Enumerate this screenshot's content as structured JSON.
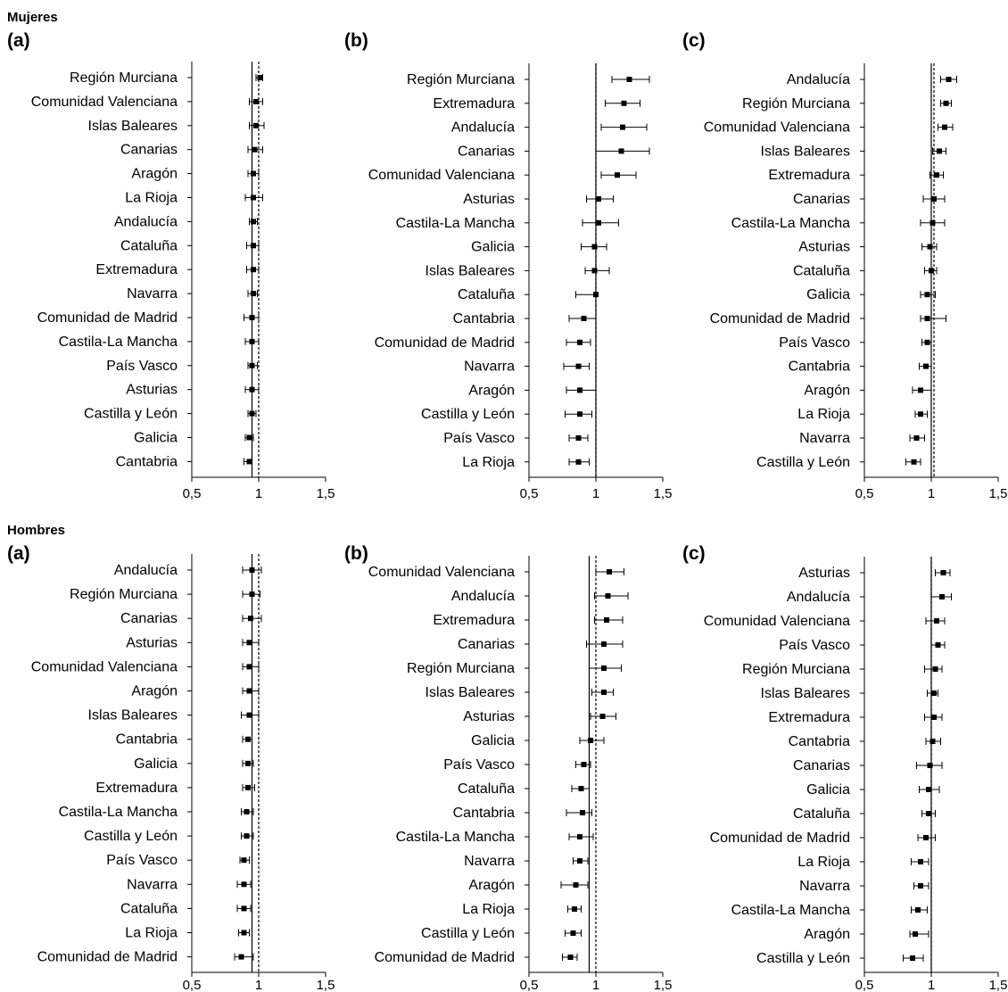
{
  "chart_data": [
    {
      "type": "forest",
      "group": "Mujeres",
      "panel": "(a)",
      "xlim": [
        0.5,
        1.5
      ],
      "xticks": [
        "0,5",
        "1",
        "1,5"
      ],
      "solid_ref": 0.95,
      "dashed_ref": 1.0,
      "rows": [
        {
          "label": "Región Murciana",
          "est": 1.01,
          "lo": 0.98,
          "hi": 1.03
        },
        {
          "label": "Comunidad Valenciana",
          "est": 0.98,
          "lo": 0.93,
          "hi": 1.03
        },
        {
          "label": "Islas Baleares",
          "est": 0.98,
          "lo": 0.93,
          "hi": 1.04
        },
        {
          "label": "Canarias",
          "est": 0.97,
          "lo": 0.92,
          "hi": 1.03
        },
        {
          "label": "Aragón",
          "est": 0.96,
          "lo": 0.92,
          "hi": 1.0
        },
        {
          "label": "La Rioja",
          "est": 0.96,
          "lo": 0.9,
          "hi": 1.03
        },
        {
          "label": "Andalucía",
          "est": 0.96,
          "lo": 0.93,
          "hi": 0.99
        },
        {
          "label": "Cataluña",
          "est": 0.96,
          "lo": 0.91,
          "hi": 1.0
        },
        {
          "label": "Extremadura",
          "est": 0.96,
          "lo": 0.91,
          "hi": 1.0
        },
        {
          "label": "Navarra",
          "est": 0.96,
          "lo": 0.92,
          "hi": 0.99
        },
        {
          "label": "Comunidad de Madrid",
          "est": 0.95,
          "lo": 0.89,
          "hi": 1.0
        },
        {
          "label": "Castila-La Mancha",
          "est": 0.95,
          "lo": 0.9,
          "hi": 1.0
        },
        {
          "label": "País Vasco",
          "est": 0.95,
          "lo": 0.92,
          "hi": 0.99
        },
        {
          "label": "Asturias",
          "est": 0.95,
          "lo": 0.9,
          "hi": 1.0
        },
        {
          "label": "Castilla y León",
          "est": 0.95,
          "lo": 0.92,
          "hi": 0.98
        },
        {
          "label": "Galicia",
          "est": 0.93,
          "lo": 0.9,
          "hi": 0.96
        },
        {
          "label": "Cantabria",
          "est": 0.93,
          "lo": 0.89,
          "hi": 0.95
        }
      ]
    },
    {
      "type": "forest",
      "group": "Mujeres",
      "panel": "(b)",
      "xlim": [
        0.5,
        1.5
      ],
      "xticks": [
        "0,5",
        "1",
        "1,5"
      ],
      "solid_ref": 1.0,
      "dashed_ref": 1.0,
      "rows": [
        {
          "label": "Región Murciana",
          "est": 1.25,
          "lo": 1.12,
          "hi": 1.4
        },
        {
          "label": "Extremadura",
          "est": 1.21,
          "lo": 1.07,
          "hi": 1.33
        },
        {
          "label": "Andalucía",
          "est": 1.2,
          "lo": 1.04,
          "hi": 1.38
        },
        {
          "label": "Canarias",
          "est": 1.19,
          "lo": 1.0,
          "hi": 1.4
        },
        {
          "label": "Comunidad Valenciana",
          "est": 1.16,
          "lo": 1.04,
          "hi": 1.3
        },
        {
          "label": "Asturias",
          "est": 1.02,
          "lo": 0.93,
          "hi": 1.13
        },
        {
          "label": "Castila-La Mancha",
          "est": 1.02,
          "lo": 0.9,
          "hi": 1.17
        },
        {
          "label": "Galicia",
          "est": 0.99,
          "lo": 0.89,
          "hi": 1.08
        },
        {
          "label": "Islas Baleares",
          "est": 0.99,
          "lo": 0.92,
          "hi": 1.1
        },
        {
          "label": "Cataluña",
          "est": 1.0,
          "lo": 0.85,
          "hi": 1.0
        },
        {
          "label": "Cantabria",
          "est": 0.91,
          "lo": 0.8,
          "hi": 1.0
        },
        {
          "label": "Comunidad de Madrid",
          "est": 0.88,
          "lo": 0.78,
          "hi": 0.96
        },
        {
          "label": "Navarra",
          "est": 0.87,
          "lo": 0.76,
          "hi": 0.95
        },
        {
          "label": "Aragón",
          "est": 0.88,
          "lo": 0.78,
          "hi": 1.0
        },
        {
          "label": "Castilla y León",
          "est": 0.88,
          "lo": 0.77,
          "hi": 0.97
        },
        {
          "label": "País Vasco",
          "est": 0.87,
          "lo": 0.8,
          "hi": 0.94
        },
        {
          "label": "La Rioja",
          "est": 0.87,
          "lo": 0.8,
          "hi": 0.95
        }
      ]
    },
    {
      "type": "forest",
      "group": "Mujeres",
      "panel": "(c)",
      "xlim": [
        0.5,
        1.5
      ],
      "xticks": [
        "0,5",
        "1",
        "1,5"
      ],
      "solid_ref": 1.0,
      "dashed_ref": 1.02,
      "rows": [
        {
          "label": "Andalucía",
          "est": 1.13,
          "lo": 1.07,
          "hi": 1.19
        },
        {
          "label": "Región Murciana",
          "est": 1.11,
          "lo": 1.07,
          "hi": 1.15
        },
        {
          "label": "Comunidad Valenciana",
          "est": 1.1,
          "lo": 1.05,
          "hi": 1.16
        },
        {
          "label": "Islas Baleares",
          "est": 1.06,
          "lo": 1.01,
          "hi": 1.11
        },
        {
          "label": "Extremadura",
          "est": 1.04,
          "lo": 0.99,
          "hi": 1.09
        },
        {
          "label": "Canarias",
          "est": 1.02,
          "lo": 0.94,
          "hi": 1.1
        },
        {
          "label": "Castila-La Mancha",
          "est": 1.01,
          "lo": 0.92,
          "hi": 1.1
        },
        {
          "label": "Asturias",
          "est": 0.99,
          "lo": 0.93,
          "hi": 1.04
        },
        {
          "label": "Cataluña",
          "est": 1.0,
          "lo": 0.95,
          "hi": 1.04
        },
        {
          "label": "Galicia",
          "est": 0.97,
          "lo": 0.92,
          "hi": 1.03
        },
        {
          "label": "Comunidad de Madrid",
          "est": 0.97,
          "lo": 0.92,
          "hi": 1.11
        },
        {
          "label": "País Vasco",
          "est": 0.97,
          "lo": 0.93,
          "hi": 1.0
        },
        {
          "label": "Cantabria",
          "est": 0.96,
          "lo": 0.91,
          "hi": 1.0
        },
        {
          "label": "Aragón",
          "est": 0.92,
          "lo": 0.86,
          "hi": 1.0
        },
        {
          "label": "La Rioja",
          "est": 0.92,
          "lo": 0.88,
          "hi": 0.97
        },
        {
          "label": "Navarra",
          "est": 0.89,
          "lo": 0.84,
          "hi": 0.95
        },
        {
          "label": "Castilla y León",
          "est": 0.87,
          "lo": 0.81,
          "hi": 0.92
        }
      ]
    },
    {
      "type": "forest",
      "group": "Hombres",
      "panel": "(a)",
      "xlim": [
        0.5,
        1.5
      ],
      "xticks": [
        "0,5",
        "1",
        "1,5"
      ],
      "solid_ref": 0.95,
      "dashed_ref": 1.0,
      "rows": [
        {
          "label": "Andalucía",
          "est": 0.95,
          "lo": 0.88,
          "hi": 1.02
        },
        {
          "label": "Región Murciana",
          "est": 0.95,
          "lo": 0.88,
          "hi": 1.01
        },
        {
          "label": "Canarias",
          "est": 0.94,
          "lo": 0.88,
          "hi": 1.02
        },
        {
          "label": "Asturias",
          "est": 0.93,
          "lo": 0.88,
          "hi": 1.0
        },
        {
          "label": "Comunidad Valenciana",
          "est": 0.93,
          "lo": 0.88,
          "hi": 1.0
        },
        {
          "label": "Aragón",
          "est": 0.93,
          "lo": 0.88,
          "hi": 1.0
        },
        {
          "label": "Islas Baleares",
          "est": 0.93,
          "lo": 0.87,
          "hi": 1.0
        },
        {
          "label": "Cantabria",
          "est": 0.92,
          "lo": 0.88,
          "hi": 0.95
        },
        {
          "label": "Galicia",
          "est": 0.92,
          "lo": 0.88,
          "hi": 0.96
        },
        {
          "label": "Extremadura",
          "est": 0.92,
          "lo": 0.88,
          "hi": 0.97
        },
        {
          "label": "Castila-La Mancha",
          "est": 0.91,
          "lo": 0.87,
          "hi": 0.96
        },
        {
          "label": "Castilla y León",
          "est": 0.91,
          "lo": 0.87,
          "hi": 0.96
        },
        {
          "label": "País Vasco",
          "est": 0.89,
          "lo": 0.86,
          "hi": 0.93
        },
        {
          "label": "Navarra",
          "est": 0.89,
          "lo": 0.84,
          "hi": 0.94
        },
        {
          "label": "Cataluña",
          "est": 0.89,
          "lo": 0.84,
          "hi": 0.94
        },
        {
          "label": "La Rioja",
          "est": 0.89,
          "lo": 0.85,
          "hi": 0.93
        },
        {
          "label": "Comunidad de Madrid",
          "est": 0.87,
          "lo": 0.82,
          "hi": 0.96
        }
      ]
    },
    {
      "type": "forest",
      "group": "Hombres",
      "panel": "(b)",
      "xlim": [
        0.5,
        1.5
      ],
      "xticks": [
        "0,5",
        "1",
        "1,5"
      ],
      "solid_ref": 0.95,
      "dashed_ref": 1.0,
      "rows": [
        {
          "label": "Comunidad Valenciana",
          "est": 1.1,
          "lo": 1.0,
          "hi": 1.21
        },
        {
          "label": "Andalucía",
          "est": 1.09,
          "lo": 0.99,
          "hi": 1.24
        },
        {
          "label": "Extremadura",
          "est": 1.08,
          "lo": 0.99,
          "hi": 1.2
        },
        {
          "label": "Canarias",
          "est": 1.06,
          "lo": 0.93,
          "hi": 1.2
        },
        {
          "label": "Región Murciana",
          "est": 1.06,
          "lo": 0.95,
          "hi": 1.19
        },
        {
          "label": "Islas Baleares",
          "est": 1.06,
          "lo": 0.97,
          "hi": 1.13
        },
        {
          "label": "Asturias",
          "est": 1.05,
          "lo": 0.96,
          "hi": 1.15
        },
        {
          "label": "Galicia",
          "est": 0.96,
          "lo": 0.88,
          "hi": 1.06
        },
        {
          "label": "País Vasco",
          "est": 0.91,
          "lo": 0.85,
          "hi": 0.96
        },
        {
          "label": "Cataluña",
          "est": 0.89,
          "lo": 0.82,
          "hi": 0.95
        },
        {
          "label": "Cantabria",
          "est": 0.9,
          "lo": 0.78,
          "hi": 0.97
        },
        {
          "label": "Castila-La Mancha",
          "est": 0.88,
          "lo": 0.8,
          "hi": 0.98
        },
        {
          "label": "Navarra",
          "est": 0.88,
          "lo": 0.83,
          "hi": 0.94
        },
        {
          "label": "Aragón",
          "est": 0.85,
          "lo": 0.74,
          "hi": 0.94
        },
        {
          "label": "La Rioja",
          "est": 0.84,
          "lo": 0.79,
          "hi": 0.89
        },
        {
          "label": "Castilla y León",
          "est": 0.83,
          "lo": 0.77,
          "hi": 0.89
        },
        {
          "label": "Comunidad de Madrid",
          "est": 0.81,
          "lo": 0.75,
          "hi": 0.86
        }
      ]
    },
    {
      "type": "forest",
      "group": "Hombres",
      "panel": "(c)",
      "xlim": [
        0.5,
        1.5
      ],
      "xticks": [
        "0,5",
        "1",
        "1,5"
      ],
      "solid_ref": 1.0,
      "dashed_ref": 1.0,
      "rows": [
        {
          "label": "Asturias",
          "est": 1.09,
          "lo": 1.03,
          "hi": 1.14
        },
        {
          "label": "Andalucía",
          "est": 1.08,
          "lo": 1.0,
          "hi": 1.15
        },
        {
          "label": "Comunidad Valenciana",
          "est": 1.04,
          "lo": 0.96,
          "hi": 1.1
        },
        {
          "label": "País Vasco",
          "est": 1.05,
          "lo": 1.0,
          "hi": 1.1
        },
        {
          "label": "Región Murciana",
          "est": 1.03,
          "lo": 0.95,
          "hi": 1.08
        },
        {
          "label": "Islas Baleares",
          "est": 1.02,
          "lo": 0.97,
          "hi": 1.05
        },
        {
          "label": "Extremadura",
          "est": 1.02,
          "lo": 0.95,
          "hi": 1.08
        },
        {
          "label": "Cantabria",
          "est": 1.01,
          "lo": 0.96,
          "hi": 1.07
        },
        {
          "label": "Canarias",
          "est": 0.99,
          "lo": 0.89,
          "hi": 1.08
        },
        {
          "label": "Galicia",
          "est": 0.98,
          "lo": 0.91,
          "hi": 1.06
        },
        {
          "label": "Cataluña",
          "est": 0.98,
          "lo": 0.93,
          "hi": 1.03
        },
        {
          "label": "Comunidad de Madrid",
          "est": 0.96,
          "lo": 0.9,
          "hi": 1.03
        },
        {
          "label": "La Rioja",
          "est": 0.92,
          "lo": 0.85,
          "hi": 0.98
        },
        {
          "label": "Navarra",
          "est": 0.92,
          "lo": 0.87,
          "hi": 0.98
        },
        {
          "label": "Castila-La Mancha",
          "est": 0.9,
          "lo": 0.85,
          "hi": 0.97
        },
        {
          "label": "Aragón",
          "est": 0.88,
          "lo": 0.84,
          "hi": 0.98
        },
        {
          "label": "Castilla y León",
          "est": 0.86,
          "lo": 0.79,
          "hi": 0.94
        }
      ]
    }
  ],
  "groups": [
    "Mujeres",
    "Hombres"
  ]
}
